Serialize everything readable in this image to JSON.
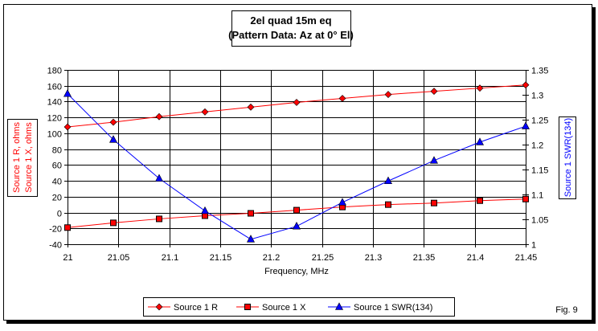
{
  "chart_data": {
    "type": "line",
    "title": [
      "2el quad 15m eq",
      "(Pattern Data: Az at 0° El)"
    ],
    "xlabel": "Frequency, MHz",
    "ylabel_left": [
      "Source 1 R, ohms",
      "Source 1 X, ohms"
    ],
    "ylabel_right": "Source 1 SWR(134)",
    "xlim": [
      21,
      21.45
    ],
    "ylim_left": [
      -40,
      180
    ],
    "ylim_right": [
      1,
      1.35
    ],
    "x_ticks": [
      "21",
      "21.05",
      "21.1",
      "21.15",
      "21.2",
      "21.25",
      "21.3",
      "21.35",
      "21.4",
      "21.45"
    ],
    "y_left_ticks": [
      "180",
      "160",
      "140",
      "120",
      "100",
      "80",
      "60",
      "40",
      "20",
      "0",
      "-20",
      "-40"
    ],
    "y_right_ticks": [
      "1.35",
      "1.3",
      "1.25",
      "1.2",
      "1.15",
      "1.1",
      "1.05",
      "1"
    ],
    "grid": true,
    "legend_position": "bottom",
    "x": [
      21,
      21.045,
      21.09,
      21.135,
      21.18,
      21.225,
      21.27,
      21.315,
      21.36,
      21.405,
      21.45
    ],
    "series": [
      {
        "name": "Source 1 R",
        "axis": "left",
        "marker": "diamond",
        "color": "#ff0000",
        "values": [
          108,
          114,
          121,
          127,
          133,
          139,
          144,
          149,
          153,
          157,
          161
        ]
      },
      {
        "name": "Source 1 X",
        "axis": "left",
        "marker": "square",
        "color": "#ff0000",
        "values": [
          -19,
          -13,
          -8,
          -4,
          -1,
          3,
          7,
          10,
          12,
          15,
          17
        ]
      },
      {
        "name": "Source 1 SWR(134)",
        "axis": "right",
        "marker": "triangle",
        "color": "#0000ff",
        "values": [
          1.302,
          1.21,
          1.132,
          1.067,
          1.01,
          1.036,
          1.084,
          1.127,
          1.168,
          1.205,
          1.237
        ]
      }
    ],
    "annotation": "Fig. 9"
  }
}
